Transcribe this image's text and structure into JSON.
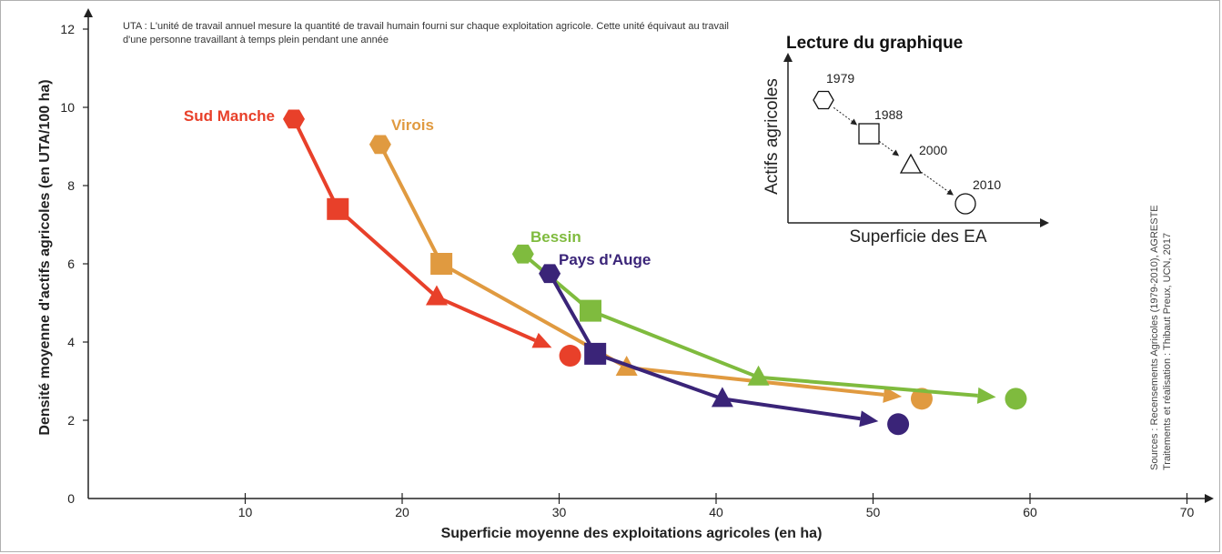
{
  "note": "UTA : L'unité de travail annuel mesure la quantité de travail humain fourni sur chaque exploitation agricole. Cette unité équivaut au travail d'une personne travaillant à temps plein pendant une année",
  "sources": {
    "line1": "Sources : Recensements Agricoles (1979-2010), AGRESTE",
    "line2": "Traitements et réalisation : Thibaut Preux, UCN, 2017"
  },
  "chart_data": {
    "type": "line",
    "xlabel": "Superficie moyenne des exploitations agricoles (en ha)",
    "ylabel": "Densité moyenne d'actifs agricoles (en UTA/100 ha)",
    "xlim": [
      0,
      70
    ],
    "ylim": [
      0,
      12
    ],
    "xticks": [
      10,
      20,
      30,
      40,
      50,
      60,
      70
    ],
    "yticks": [
      0,
      2,
      4,
      6,
      8,
      10,
      12
    ],
    "years": [
      "1979",
      "1988",
      "2000",
      "2010"
    ],
    "series": [
      {
        "name": "Sud Manche",
        "color": "#e8402a",
        "x": [
          13.1,
          15.9,
          22.2,
          30.7
        ],
        "y": [
          9.7,
          7.4,
          5.15,
          3.65
        ]
      },
      {
        "name": "Virois",
        "color": "#e09a40",
        "x": [
          18.6,
          22.5,
          34.3,
          53.1
        ],
        "y": [
          9.05,
          6.0,
          3.35,
          2.55
        ]
      },
      {
        "name": "Bessin",
        "color": "#7fbb3e",
        "x": [
          27.7,
          32.0,
          42.7,
          59.1
        ],
        "y": [
          6.25,
          4.8,
          3.1,
          2.55
        ]
      },
      {
        "name": "Pays d'Auge",
        "color": "#3a2478",
        "x": [
          29.4,
          32.3,
          40.4,
          51.6
        ],
        "y": [
          5.75,
          3.7,
          2.55,
          1.9
        ]
      }
    ]
  },
  "inset": {
    "title": "Lecture du graphique",
    "ylabel": "Actifs agricoles",
    "xlabel": "Superficie des EA",
    "labels": [
      "1979",
      "1988",
      "2000",
      "2010"
    ]
  }
}
